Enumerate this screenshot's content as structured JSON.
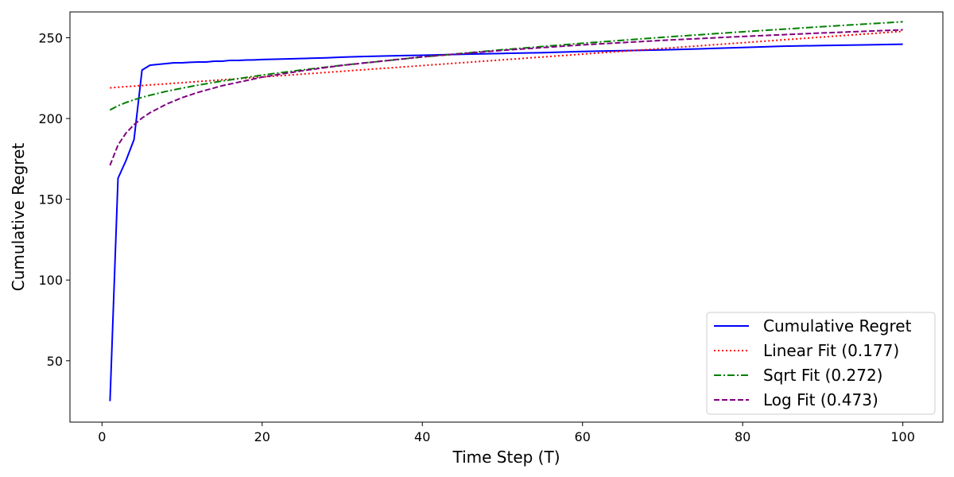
{
  "chart_data": {
    "type": "line",
    "title": "",
    "xlabel": "Time Step (T)",
    "ylabel": "Cumulative Regret",
    "xlim": [
      -4,
      105
    ],
    "ylim": [
      12,
      266
    ],
    "xticks": [
      0,
      20,
      40,
      60,
      80,
      100
    ],
    "yticks": [
      50,
      100,
      150,
      200,
      250
    ],
    "grid": false,
    "legend_position": "lower-right",
    "series": [
      {
        "name": "Cumulative Regret",
        "color": "#0000ff",
        "style": "solid",
        "x": [
          1,
          2,
          3,
          4,
          5,
          6,
          7,
          8,
          9,
          10,
          11,
          12,
          13,
          14,
          15,
          16,
          17,
          18,
          19,
          20,
          22,
          24,
          26,
          28,
          30,
          32,
          35,
          40,
          45,
          50,
          55,
          60,
          65,
          70,
          75,
          80,
          85,
          90,
          95,
          100
        ],
        "y": [
          25,
          163,
          174,
          187,
          230,
          233,
          233.5,
          234,
          234.5,
          234.5,
          234.8,
          235,
          235,
          235.5,
          235.5,
          236,
          236,
          236.2,
          236.3,
          236.5,
          236.8,
          237,
          237.3,
          237.6,
          238,
          238.3,
          238.7,
          239.2,
          239.8,
          240.3,
          240.8,
          241.5,
          242,
          242.5,
          243.2,
          244,
          244.8,
          245.2,
          245.6,
          246
        ]
      },
      {
        "name": "Linear Fit (0.177)",
        "color": "#ff0000",
        "style": "dotted",
        "x": [
          1,
          100
        ],
        "y": [
          219,
          254
        ]
      },
      {
        "name": "Sqrt Fit (0.272)",
        "color": "#008000",
        "style": "dashdot",
        "x": [
          1,
          2,
          3,
          4,
          5,
          6,
          8,
          10,
          12,
          15,
          20,
          25,
          30,
          40,
          50,
          60,
          70,
          80,
          90,
          100
        ],
        "y": [
          205.3,
          207.9,
          209.9,
          211.6,
          213.1,
          214.4,
          216.8,
          218.8,
          220.7,
          223.2,
          226.9,
          230.1,
          233.0,
          238.1,
          242.6,
          246.6,
          250.3,
          253.7,
          256.9,
          259.9
        ]
      },
      {
        "name": "Log Fit (0.473)",
        "color": "#800080",
        "style": "dashed",
        "x": [
          1,
          2,
          3,
          4,
          5,
          6,
          8,
          10,
          12,
          15,
          20,
          25,
          30,
          40,
          50,
          60,
          70,
          80,
          90,
          100
        ],
        "y": [
          171,
          183.6,
          191,
          196.2,
          200.3,
          203.6,
          208.8,
          212.9,
          216.2,
          220.3,
          225.6,
          229.6,
          232.9,
          238.2,
          242.2,
          245.6,
          248.4,
          250.8,
          253,
          254.9
        ]
      }
    ]
  }
}
